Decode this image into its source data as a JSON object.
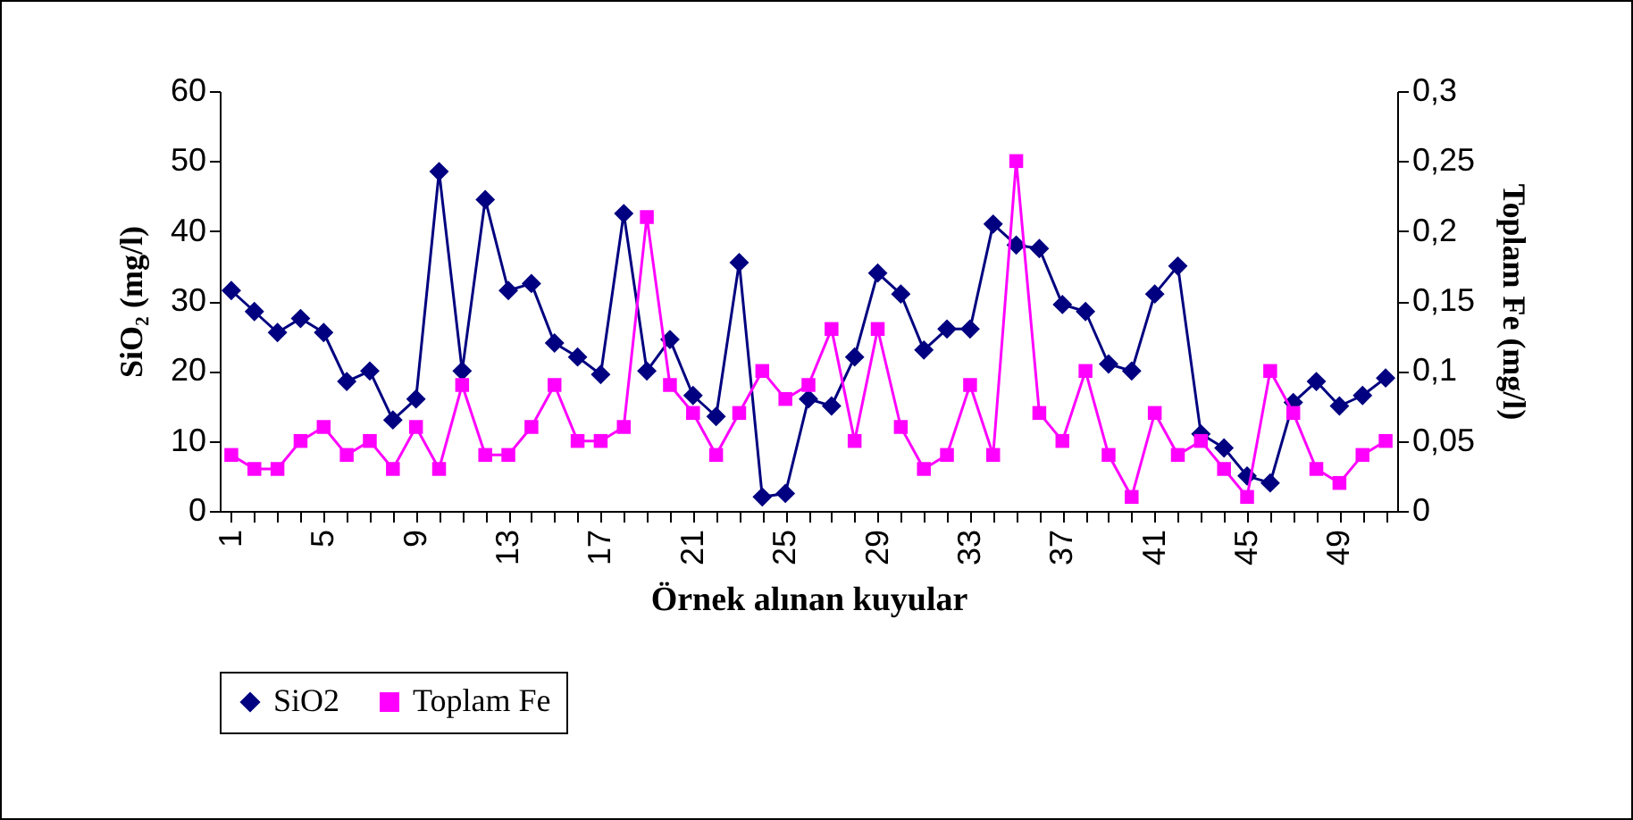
{
  "chart_data": {
    "type": "line",
    "xlabel": "Örnek alınan kuyular",
    "ylabel": "SiO₂ (mg/l)",
    "y2label": "Toplam Fe  (mg/l)",
    "categories": [
      "1",
      null,
      null,
      null,
      "5",
      null,
      null,
      null,
      "9",
      null,
      null,
      null,
      "13",
      null,
      null,
      null,
      "17",
      null,
      null,
      null,
      "21",
      null,
      null,
      null,
      "25",
      null,
      null,
      null,
      "29",
      null,
      null,
      null,
      "33",
      null,
      null,
      null,
      "37",
      null,
      null,
      null,
      "41",
      null,
      null,
      null,
      "45",
      null,
      null,
      null,
      "49",
      null,
      null
    ],
    "series": [
      {
        "name": "SiO2",
        "color": "#000080",
        "marker": "diamond",
        "values": [
          31.5,
          28.5,
          25.5,
          27.5,
          25.5,
          18.5,
          20,
          13,
          16,
          48.5,
          20,
          44.5,
          31.5,
          32.5,
          24,
          22,
          19.5,
          42.5,
          20,
          24.5,
          16.5,
          13.5,
          35.5,
          2,
          2.5,
          16,
          15,
          22,
          34,
          31,
          23,
          26,
          26,
          41,
          38,
          37.5,
          29.5,
          28.5,
          21,
          20,
          31,
          35,
          11,
          9,
          5,
          4,
          15.5,
          18.5,
          15,
          16.5,
          19
        ]
      },
      {
        "name": "Toplam Fe",
        "color": "#ff00ff",
        "marker": "square",
        "axis": "y2",
        "values": [
          0.04,
          0.03,
          0.03,
          0.05,
          0.06,
          0.04,
          0.05,
          0.03,
          0.06,
          0.03,
          0.09,
          0.04,
          0.04,
          0.06,
          0.09,
          0.05,
          0.05,
          0.06,
          0.21,
          0.09,
          0.07,
          0.04,
          0.07,
          0.1,
          0.08,
          0.09,
          0.13,
          0.05,
          0.13,
          0.06,
          0.03,
          0.04,
          0.09,
          0.04,
          0.25,
          0.07,
          0.05,
          0.1,
          0.04,
          0.01,
          0.07,
          0.04,
          0.05,
          0.03,
          0.01,
          0.1,
          0.07,
          0.03,
          0.02,
          0.04,
          0.05
        ]
      }
    ],
    "ylim": [
      0,
      60
    ],
    "yticks": [
      0,
      10,
      20,
      30,
      40,
      50,
      60
    ],
    "y2lim": [
      0,
      0.3
    ],
    "y2ticks": [
      0,
      {
        "value": 0.05,
        "label": "0,05"
      },
      {
        "value": 0.1,
        "label": "0,1"
      },
      {
        "value": 0.15,
        "label": "0,15"
      },
      {
        "value": 0.2,
        "label": "0,2"
      },
      {
        "value": 0.25,
        "label": "0,25"
      },
      {
        "value": 0.3,
        "label": "0,3"
      }
    ],
    "grid": false,
    "legend": "bottom"
  }
}
